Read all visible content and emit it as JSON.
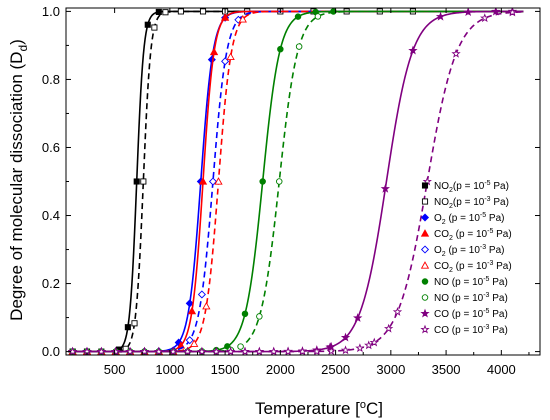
{
  "chart_data": {
    "type": "line",
    "xlabel": "Temperature [°C]",
    "ylabel": "Degree of molecular dissociation (D_d)",
    "xlim": [
      60,
      4350
    ],
    "ylim": [
      -0.01,
      1.01
    ],
    "x_ticks": [
      500,
      1000,
      1500,
      2000,
      2500,
      3000,
      3500,
      4000
    ],
    "y_ticks": [
      0.0,
      0.2,
      0.4,
      0.6,
      0.8,
      1.0
    ],
    "grid": false,
    "legend_position": "right",
    "series": [
      {
        "name": "NO2 (p = 10^-5 Pa)",
        "legend_main": "NO",
        "legend_sub": "2",
        "legend_pressure": "(p = 10",
        "legend_exp": "-5",
        "legend_unit": " Pa)",
        "color": "#000000",
        "dash": "solid",
        "marker": "square",
        "filled": true,
        "T50": 700,
        "k": 0.032,
        "markers_x": [
          540,
          620,
          700,
          800,
          900
        ]
      },
      {
        "name": "NO2 (p = 10^-3 Pa)",
        "legend_main": "NO",
        "legend_sub": "2",
        "legend_pressure": "(p = 10",
        "legend_exp": "-3",
        "legend_unit": " Pa)",
        "color": "#000000",
        "dash": "dashed",
        "marker": "square",
        "filled": false,
        "T50": 760,
        "k": 0.03,
        "markers_x": [
          600,
          680,
          760,
          860,
          960,
          1100,
          1300,
          1500,
          1700,
          2000,
          2300,
          2600,
          2900,
          3200
        ]
      },
      {
        "name": "O2 (p = 10^-5 Pa)",
        "legend_main": "O",
        "legend_sub": "2",
        "legend_pressure": "  (p = 10",
        "legend_exp": "-5",
        "legend_unit": " Pa)",
        "color": "#0000ff",
        "dash": "solid",
        "marker": "diamond",
        "filled": true,
        "T50": 1280,
        "k": 0.018,
        "markers_x": [
          1080,
          1180,
          1280,
          1380,
          1500
        ]
      },
      {
        "name": "CO2 (p = 10^-5 Pa)",
        "legend_main": "CO",
        "legend_sub": "2",
        "legend_pressure": " (p = 10",
        "legend_exp": "-5",
        "legend_unit": " Pa)",
        "color": "#ff0000",
        "dash": "solid",
        "marker": "triangle",
        "filled": true,
        "T50": 1300,
        "k": 0.02,
        "markers_x": [
          1100,
          1200,
          1300,
          1400,
          1500
        ]
      },
      {
        "name": "O2 (p = 10^-3 Pa)",
        "legend_main": "O",
        "legend_sub": "2",
        "legend_pressure": "   (p = 10",
        "legend_exp": "-3",
        "legend_unit": " Pa)",
        "color": "#0000ff",
        "dash": "dashed",
        "marker": "diamond",
        "filled": false,
        "T50": 1390,
        "k": 0.016,
        "markers_x": [
          1180,
          1290,
          1390,
          1500,
          1620
        ]
      },
      {
        "name": "CO2 (p = 10^-3 Pa)",
        "legend_main": "CO",
        "legend_sub": "2",
        "legend_pressure": "  (p = 10",
        "legend_exp": "-3",
        "legend_unit": " Pa)",
        "color": "#ff0000",
        "dash": "dashed",
        "marker": "triangle",
        "filled": false,
        "T50": 1440,
        "k": 0.017,
        "markers_x": [
          1220,
          1330,
          1440,
          1550,
          1660
        ]
      },
      {
        "name": "NO (p = 10^-5 Pa)",
        "legend_main": "NO",
        "legend_sub": "",
        "legend_pressure": " (p = 10",
        "legend_exp": "-5",
        "legend_unit": " Pa)",
        "color": "#008000",
        "dash": "solid",
        "marker": "circle",
        "filled": true,
        "T50": 1840,
        "k": 0.013,
        "markers_x": [
          1520,
          1680,
          1840,
          2000,
          2160,
          2320,
          2480
        ]
      },
      {
        "name": "NO (p = 10^-3 Pa)",
        "legend_main": "NO",
        "legend_sub": "",
        "legend_pressure": " (p = 10",
        "legend_exp": "-3",
        "legend_unit": " Pa)",
        "color": "#008000",
        "dash": "dashed",
        "marker": "circle",
        "filled": false,
        "T50": 1990,
        "k": 0.012,
        "markers_x": [
          1640,
          1810,
          1990,
          2170,
          2340
        ]
      },
      {
        "name": "CO (p = 10^-5 Pa)",
        "legend_main": "CO",
        "legend_sub": "",
        "legend_pressure": " (p = 10",
        "legend_exp": "-5",
        "legend_unit": " Pa)",
        "color": "#800080",
        "dash": "solid",
        "marker": "star",
        "filled": true,
        "T50": 2960,
        "k": 0.0085,
        "markers_x": [
          2450,
          2700,
          2950,
          3200,
          3450,
          3700,
          3950,
          4100
        ]
      },
      {
        "name": "CO (p = 10^-3 Pa)",
        "legend_main": "CO",
        "legend_sub": "",
        "legend_pressure": " (p = 10",
        "legend_exp": "-3",
        "legend_unit": " Pa)",
        "color": "#800080",
        "dash": "dashed",
        "marker": "star",
        "filled": false,
        "T50": 3330,
        "k": 0.0075,
        "markers_x": [
          2800,
          3060,
          3330,
          3590,
          3850,
          4100
        ]
      }
    ]
  }
}
